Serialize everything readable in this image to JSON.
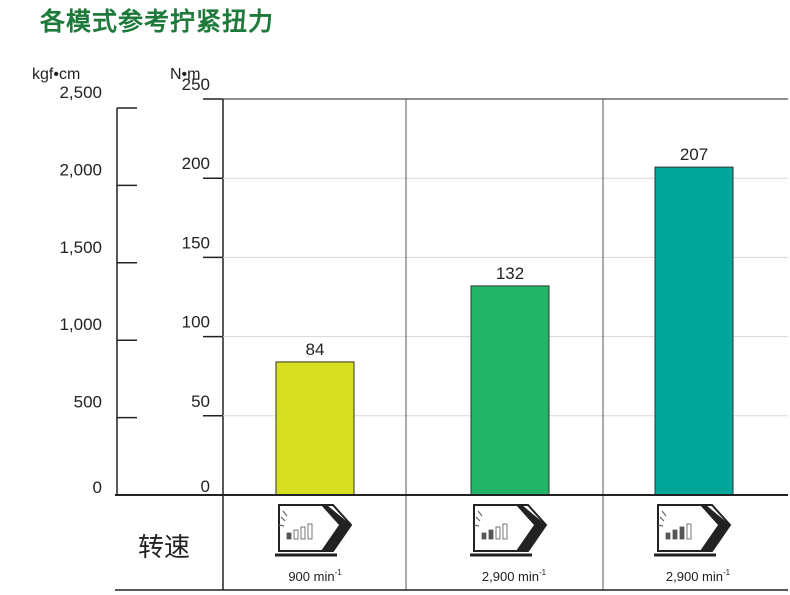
{
  "title": "各模式参考拧紧扭力",
  "row_label": "转速",
  "colors": {
    "title": "#1e7a3b",
    "bars": [
      "#d6e021",
      "#22b56a",
      "#00a69a"
    ]
  },
  "chart_data": {
    "type": "bar",
    "title": "各模式参考拧紧扭力",
    "axes": [
      {
        "unit": "kgf•cm",
        "ylim": [
          0,
          2500
        ],
        "ticks": [
          "0",
          "500",
          "1,000",
          "1,500",
          "2,000",
          "2,500"
        ]
      },
      {
        "unit": "N•m",
        "ylim": [
          0,
          250
        ],
        "ticks": [
          "0",
          "50",
          "100",
          "150",
          "200",
          "250"
        ]
      }
    ],
    "categories": [
      "900 min",
      "2,900 min",
      "2,900 min"
    ],
    "speed_unit_superscript": "-1",
    "values": [
      84,
      132,
      207
    ],
    "value_labels": [
      "84",
      "132",
      "207"
    ],
    "mode_icons": [
      "mode-1-icon",
      "mode-2-icon",
      "mode-3-icon"
    ],
    "grid": true,
    "legend": "none"
  }
}
